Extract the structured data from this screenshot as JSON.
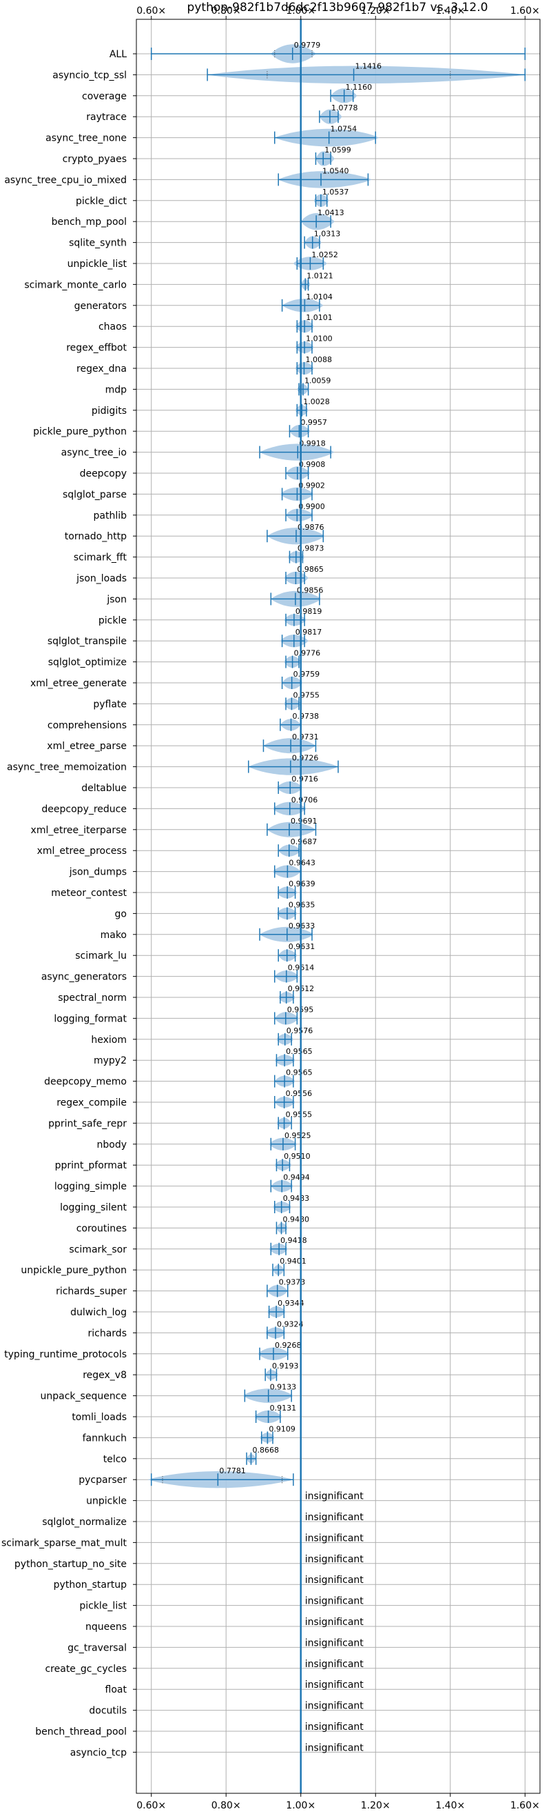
{
  "chart_data": {
    "type": "violin",
    "title": "python-982f1b7d6dc2f13b9607-982f1b7 vs. 3.12.0",
    "xlim": [
      0.56,
      1.64
    ],
    "xticks": [
      0.6,
      0.8,
      1.0,
      1.2,
      1.4,
      1.6
    ],
    "xtick_labels": [
      "0.60×",
      "0.80×",
      "1.00×",
      "1.20×",
      "1.40×",
      "1.60×"
    ],
    "grid": true,
    "reference_line": 1.0,
    "insignificant_text": "insignificant",
    "colors": {
      "body": "#a9c9e4",
      "line": "#1f77b4",
      "grid": "#b0b0b0"
    },
    "rows": [
      {
        "name": "ALL",
        "label": "0.9779",
        "min": 0.6,
        "max": 1.6,
        "median": 0.9779,
        "lo": 0.92,
        "hi": 1.04,
        "h": 0.45,
        "q1": 0.93,
        "q3": 1.03
      },
      {
        "name": "asyncio_tcp_ssl",
        "label": "1.1416",
        "min": 0.75,
        "max": 1.6,
        "median": 1.1416,
        "lo": 0.75,
        "hi": 1.6,
        "h": 0.42,
        "q1": 0.91,
        "q3": 1.4
      },
      {
        "name": "coverage",
        "label": "1.1160",
        "min": 1.08,
        "max": 1.14,
        "median": 1.116,
        "lo": 1.08,
        "hi": 1.15,
        "h": 0.35
      },
      {
        "name": "raytrace",
        "label": "1.0778",
        "min": 1.05,
        "max": 1.1,
        "median": 1.0778,
        "lo": 1.05,
        "hi": 1.11,
        "h": 0.35
      },
      {
        "name": "async_tree_none",
        "label": "1.0754",
        "min": 0.93,
        "max": 1.2,
        "median": 1.0754,
        "lo": 0.93,
        "hi": 1.21,
        "h": 0.42
      },
      {
        "name": "crypto_pyaes",
        "label": "1.0599",
        "min": 1.04,
        "max": 1.08,
        "median": 1.0599,
        "lo": 1.04,
        "hi": 1.09,
        "h": 0.35
      },
      {
        "name": "async_tree_cpu_io_mixed",
        "label": "1.0540",
        "min": 0.94,
        "max": 1.18,
        "median": 1.054,
        "lo": 0.94,
        "hi": 1.19,
        "h": 0.4
      },
      {
        "name": "pickle_dict",
        "label": "1.0537",
        "min": 1.04,
        "max": 1.07,
        "median": 1.0537,
        "lo": 1.035,
        "hi": 1.075,
        "h": 0.3
      },
      {
        "name": "bench_mp_pool",
        "label": "1.0413",
        "min": 1.0,
        "max": 1.08,
        "median": 1.0413,
        "lo": 1.0,
        "hi": 1.09,
        "h": 0.4
      },
      {
        "name": "sqlite_synth",
        "label": "1.0313",
        "min": 1.01,
        "max": 1.05,
        "median": 1.0313,
        "lo": 1.01,
        "hi": 1.055,
        "h": 0.3
      },
      {
        "name": "unpickle_list",
        "label": "1.0252",
        "min": 0.99,
        "max": 1.06,
        "median": 1.0252,
        "lo": 0.98,
        "hi": 1.07,
        "h": 0.32
      },
      {
        "name": "scimark_monte_carlo",
        "label": "1.0121",
        "min": 1.0,
        "max": 1.02,
        "median": 1.0121,
        "lo": 1.0,
        "hi": 1.025,
        "h": 0.25
      },
      {
        "name": "generators",
        "label": "1.0104",
        "min": 0.95,
        "max": 1.05,
        "median": 1.0104,
        "lo": 0.95,
        "hi": 1.06,
        "h": 0.32
      },
      {
        "name": "chaos",
        "label": "1.0101",
        "min": 0.99,
        "max": 1.03,
        "median": 1.0101,
        "lo": 0.985,
        "hi": 1.035,
        "h": 0.3
      },
      {
        "name": "regex_effbot",
        "label": "1.0100",
        "min": 0.99,
        "max": 1.03,
        "median": 1.01,
        "lo": 0.985,
        "hi": 1.035,
        "h": 0.28
      },
      {
        "name": "regex_dna",
        "label": "1.0088",
        "min": 0.99,
        "max": 1.03,
        "median": 1.0088,
        "lo": 0.985,
        "hi": 1.035,
        "h": 0.3
      },
      {
        "name": "mdp",
        "label": "1.0059",
        "min": 0.995,
        "max": 1.02,
        "median": 1.0059,
        "lo": 0.99,
        "hi": 1.02,
        "h": 0.25
      },
      {
        "name": "pidigits",
        "label": "1.0028",
        "min": 0.99,
        "max": 1.015,
        "median": 1.0028,
        "lo": 0.985,
        "hi": 1.02,
        "h": 0.25
      },
      {
        "name": "pickle_pure_python",
        "label": "0.9957",
        "min": 0.97,
        "max": 1.02,
        "median": 0.9957,
        "lo": 0.97,
        "hi": 1.025,
        "h": 0.3
      },
      {
        "name": "async_tree_io",
        "label": "0.9918",
        "min": 0.89,
        "max": 1.08,
        "median": 0.9918,
        "lo": 0.89,
        "hi": 1.09,
        "h": 0.4
      },
      {
        "name": "deepcopy",
        "label": "0.9908",
        "min": 0.96,
        "max": 1.02,
        "median": 0.9908,
        "lo": 0.96,
        "hi": 1.025,
        "h": 0.32
      },
      {
        "name": "sqlglot_parse",
        "label": "0.9902",
        "min": 0.95,
        "max": 1.03,
        "median": 0.9902,
        "lo": 0.945,
        "hi": 1.035,
        "h": 0.32
      },
      {
        "name": "pathlib",
        "label": "0.9900",
        "min": 0.96,
        "max": 1.03,
        "median": 0.99,
        "lo": 0.96,
        "hi": 1.035,
        "h": 0.3
      },
      {
        "name": "tornado_http",
        "label": "0.9876",
        "min": 0.91,
        "max": 1.06,
        "median": 0.9876,
        "lo": 0.91,
        "hi": 1.065,
        "h": 0.4
      },
      {
        "name": "scimark_fft",
        "label": "0.9873",
        "min": 0.97,
        "max": 1.005,
        "median": 0.9873,
        "lo": 0.965,
        "hi": 1.01,
        "h": 0.28
      },
      {
        "name": "json_loads",
        "label": "0.9865",
        "min": 0.96,
        "max": 1.01,
        "median": 0.9865,
        "lo": 0.955,
        "hi": 1.02,
        "h": 0.3
      },
      {
        "name": "json",
        "label": "0.9856",
        "min": 0.92,
        "max": 1.05,
        "median": 0.9856,
        "lo": 0.92,
        "hi": 1.055,
        "h": 0.38
      },
      {
        "name": "pickle",
        "label": "0.9819",
        "min": 0.96,
        "max": 1.01,
        "median": 0.9819,
        "lo": 0.955,
        "hi": 1.015,
        "h": 0.28
      },
      {
        "name": "sqlglot_transpile",
        "label": "0.9817",
        "min": 0.95,
        "max": 1.01,
        "median": 0.9817,
        "lo": 0.945,
        "hi": 1.02,
        "h": 0.3
      },
      {
        "name": "sqlglot_optimize",
        "label": "0.9776",
        "min": 0.96,
        "max": 0.995,
        "median": 0.9776,
        "lo": 0.955,
        "hi": 1.0,
        "h": 0.28
      },
      {
        "name": "xml_etree_generate",
        "label": "0.9759",
        "min": 0.95,
        "max": 1.0,
        "median": 0.9759,
        "lo": 0.95,
        "hi": 1.005,
        "h": 0.3
      },
      {
        "name": "pyflate",
        "label": "0.9755",
        "min": 0.96,
        "max": 0.995,
        "median": 0.9755,
        "lo": 0.955,
        "hi": 1.0,
        "h": 0.28
      },
      {
        "name": "comprehensions",
        "label": "0.9738",
        "min": 0.945,
        "max": 1.0,
        "median": 0.9738,
        "lo": 0.945,
        "hi": 1.0,
        "h": 0.28
      },
      {
        "name": "xml_etree_parse",
        "label": "0.9731",
        "min": 0.9,
        "max": 1.04,
        "median": 0.9731,
        "lo": 0.9,
        "hi": 1.04,
        "h": 0.36
      },
      {
        "name": "async_tree_memoization",
        "label": "0.9726",
        "min": 0.86,
        "max": 1.1,
        "median": 0.9726,
        "lo": 0.86,
        "hi": 1.1,
        "h": 0.4
      },
      {
        "name": "deltablue",
        "label": "0.9716",
        "min": 0.94,
        "max": 1.0,
        "median": 0.9716,
        "lo": 0.935,
        "hi": 1.005,
        "h": 0.3
      },
      {
        "name": "deepcopy_reduce",
        "label": "0.9706",
        "min": 0.93,
        "max": 1.01,
        "median": 0.9706,
        "lo": 0.925,
        "hi": 1.015,
        "h": 0.32
      },
      {
        "name": "xml_etree_iterparse",
        "label": "0.9691",
        "min": 0.91,
        "max": 1.04,
        "median": 0.9691,
        "lo": 0.91,
        "hi": 1.04,
        "h": 0.36
      },
      {
        "name": "xml_etree_process",
        "label": "0.9687",
        "min": 0.94,
        "max": 0.995,
        "median": 0.9687,
        "lo": 0.94,
        "hi": 1.0,
        "h": 0.28
      },
      {
        "name": "json_dumps",
        "label": "0.9643",
        "min": 0.93,
        "max": 1.0,
        "median": 0.9643,
        "lo": 0.925,
        "hi": 1.0,
        "h": 0.3
      },
      {
        "name": "meteor_contest",
        "label": "0.9639",
        "min": 0.94,
        "max": 0.985,
        "median": 0.9639,
        "lo": 0.935,
        "hi": 0.99,
        "h": 0.28
      },
      {
        "name": "go",
        "label": "0.9635",
        "min": 0.94,
        "max": 0.985,
        "median": 0.9635,
        "lo": 0.935,
        "hi": 0.99,
        "h": 0.28
      },
      {
        "name": "mako",
        "label": "0.9633",
        "min": 0.89,
        "max": 1.03,
        "median": 0.9633,
        "lo": 0.89,
        "hi": 1.035,
        "h": 0.36
      },
      {
        "name": "scimark_lu",
        "label": "0.9631",
        "min": 0.94,
        "max": 0.985,
        "median": 0.9631,
        "lo": 0.94,
        "hi": 0.99,
        "h": 0.28
      },
      {
        "name": "async_generators",
        "label": "0.9614",
        "min": 0.93,
        "max": 0.99,
        "median": 0.9614,
        "lo": 0.93,
        "hi": 0.995,
        "h": 0.28
      },
      {
        "name": "spectral_norm",
        "label": "0.9612",
        "min": 0.945,
        "max": 0.98,
        "median": 0.9612,
        "lo": 0.94,
        "hi": 0.985,
        "h": 0.26
      },
      {
        "name": "logging_format",
        "label": "0.9595",
        "min": 0.93,
        "max": 0.99,
        "median": 0.9595,
        "lo": 0.93,
        "hi": 0.995,
        "h": 0.3
      },
      {
        "name": "hexiom",
        "label": "0.9576",
        "min": 0.94,
        "max": 0.975,
        "median": 0.9576,
        "lo": 0.935,
        "hi": 0.98,
        "h": 0.26
      },
      {
        "name": "mypy2",
        "label": "0.9565",
        "min": 0.935,
        "max": 0.98,
        "median": 0.9565,
        "lo": 0.93,
        "hi": 0.985,
        "h": 0.26
      },
      {
        "name": "deepcopy_memo",
        "label": "0.9565",
        "min": 0.93,
        "max": 0.98,
        "median": 0.9565,
        "lo": 0.93,
        "hi": 0.985,
        "h": 0.26
      },
      {
        "name": "regex_compile",
        "label": "0.9556",
        "min": 0.93,
        "max": 0.98,
        "median": 0.9556,
        "lo": 0.93,
        "hi": 0.985,
        "h": 0.26
      },
      {
        "name": "pprint_safe_repr",
        "label": "0.9555",
        "min": 0.94,
        "max": 0.975,
        "median": 0.9555,
        "lo": 0.935,
        "hi": 0.975,
        "h": 0.26
      },
      {
        "name": "nbody",
        "label": "0.9525",
        "min": 0.92,
        "max": 0.985,
        "median": 0.9525,
        "lo": 0.915,
        "hi": 0.99,
        "h": 0.3
      },
      {
        "name": "pprint_pformat",
        "label": "0.9510",
        "min": 0.935,
        "max": 0.97,
        "median": 0.951,
        "lo": 0.93,
        "hi": 0.975,
        "h": 0.26
      },
      {
        "name": "logging_simple",
        "label": "0.9494",
        "min": 0.92,
        "max": 0.975,
        "median": 0.9494,
        "lo": 0.92,
        "hi": 0.98,
        "h": 0.28
      },
      {
        "name": "logging_silent",
        "label": "0.9483",
        "min": 0.93,
        "max": 0.97,
        "median": 0.9483,
        "lo": 0.925,
        "hi": 0.975,
        "h": 0.26
      },
      {
        "name": "coroutines",
        "label": "0.9480",
        "min": 0.935,
        "max": 0.96,
        "median": 0.948,
        "lo": 0.935,
        "hi": 0.965,
        "h": 0.24
      },
      {
        "name": "scimark_sor",
        "label": "0.9418",
        "min": 0.92,
        "max": 0.96,
        "median": 0.9418,
        "lo": 0.915,
        "hi": 0.965,
        "h": 0.26
      },
      {
        "name": "unpickle_pure_python",
        "label": "0.9401",
        "min": 0.925,
        "max": 0.955,
        "median": 0.9401,
        "lo": 0.925,
        "hi": 0.955,
        "h": 0.24
      },
      {
        "name": "richards_super",
        "label": "0.9373",
        "min": 0.91,
        "max": 0.965,
        "median": 0.9373,
        "lo": 0.91,
        "hi": 0.965,
        "h": 0.28
      },
      {
        "name": "dulwich_log",
        "label": "0.9344",
        "min": 0.915,
        "max": 0.955,
        "median": 0.9344,
        "lo": 0.91,
        "hi": 0.96,
        "h": 0.26
      },
      {
        "name": "richards",
        "label": "0.9324",
        "min": 0.91,
        "max": 0.955,
        "median": 0.9324,
        "lo": 0.905,
        "hi": 0.96,
        "h": 0.26
      },
      {
        "name": "typing_runtime_protocols",
        "label": "0.9268",
        "min": 0.89,
        "max": 0.965,
        "median": 0.9268,
        "lo": 0.885,
        "hi": 0.97,
        "h": 0.3
      },
      {
        "name": "regex_v8",
        "label": "0.9193",
        "min": 0.905,
        "max": 0.935,
        "median": 0.9193,
        "lo": 0.905,
        "hi": 0.94,
        "h": 0.24
      },
      {
        "name": "unpack_sequence",
        "label": "0.9133",
        "min": 0.85,
        "max": 0.975,
        "median": 0.9133,
        "lo": 0.845,
        "hi": 0.98,
        "h": 0.34
      },
      {
        "name": "tomli_loads",
        "label": "0.9131",
        "min": 0.88,
        "max": 0.945,
        "median": 0.9131,
        "lo": 0.875,
        "hi": 0.95,
        "h": 0.3
      },
      {
        "name": "fannkuch",
        "label": "0.9109",
        "min": 0.895,
        "max": 0.925,
        "median": 0.9109,
        "lo": 0.89,
        "hi": 0.93,
        "h": 0.24
      },
      {
        "name": "telco",
        "label": "0.8668",
        "min": 0.855,
        "max": 0.88,
        "median": 0.8668,
        "lo": 0.855,
        "hi": 0.88,
        "h": 0.22
      },
      {
        "name": "pycparser",
        "label": "0.7781",
        "min": 0.6,
        "max": 0.98,
        "median": 0.7781,
        "lo": 0.59,
        "hi": 0.98,
        "h": 0.4,
        "q1": 0.63,
        "q3": 0.95
      },
      {
        "name": "unpickle",
        "insignificant": true
      },
      {
        "name": "sqlglot_normalize",
        "insignificant": true
      },
      {
        "name": "scimark_sparse_mat_mult",
        "insignificant": true
      },
      {
        "name": "python_startup_no_site",
        "insignificant": true
      },
      {
        "name": "python_startup",
        "insignificant": true
      },
      {
        "name": "pickle_list",
        "insignificant": true
      },
      {
        "name": "nqueens",
        "insignificant": true
      },
      {
        "name": "gc_traversal",
        "insignificant": true
      },
      {
        "name": "create_gc_cycles",
        "insignificant": true
      },
      {
        "name": "float",
        "insignificant": true
      },
      {
        "name": "docutils",
        "insignificant": true
      },
      {
        "name": "bench_thread_pool",
        "insignificant": true
      },
      {
        "name": "asyncio_tcp",
        "insignificant": true
      }
    ]
  }
}
